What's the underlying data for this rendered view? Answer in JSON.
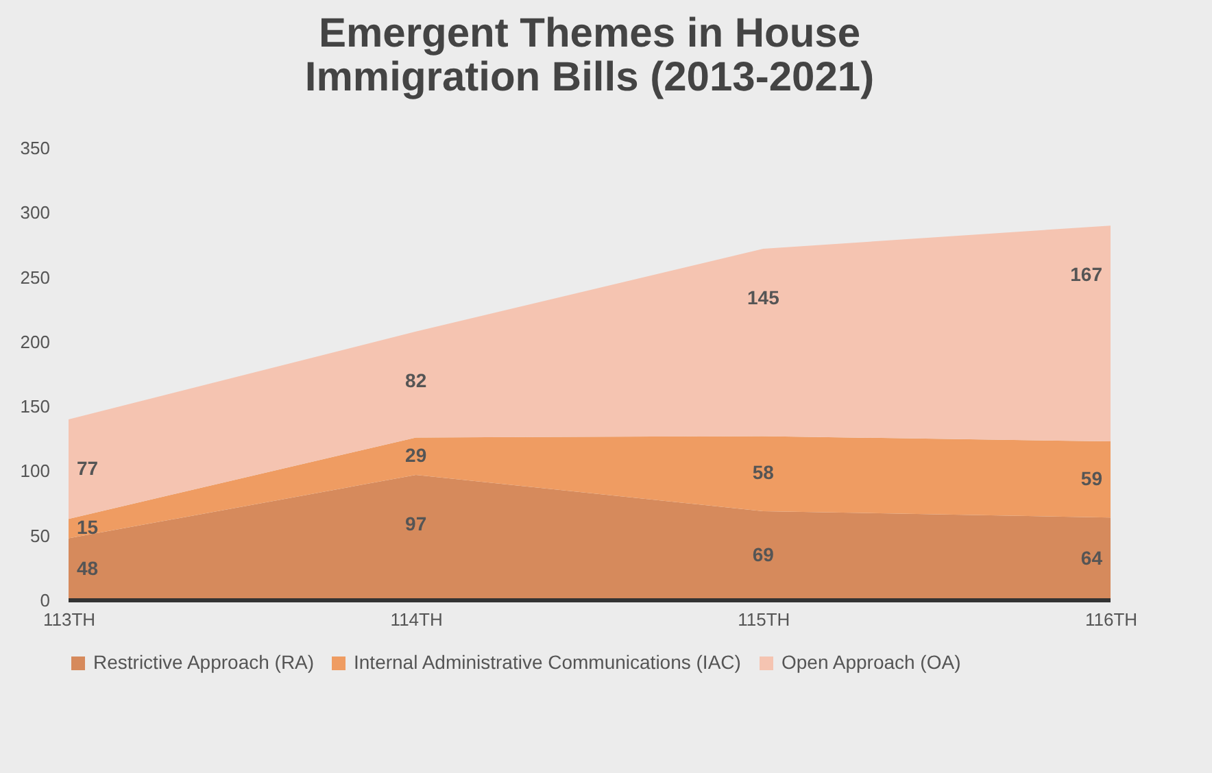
{
  "chart_data": {
    "type": "area",
    "title": "Emergent Themes in House Immigration Bills (2013-2021)",
    "categories": [
      "113TH",
      "114TH",
      "115TH",
      "116TH"
    ],
    "stacked": true,
    "series": [
      {
        "name": "Restrictive Approach (RA)",
        "color": "#d68a5c",
        "values": [
          48,
          97,
          69,
          64
        ]
      },
      {
        "name": "Internal Administrative Communications (IAC)",
        "color": "#ef9c62",
        "values": [
          15,
          29,
          58,
          59
        ]
      },
      {
        "name": "Open Approach (OA)",
        "color": "#f5c4b1",
        "values": [
          77,
          82,
          145,
          167
        ]
      }
    ],
    "ylim": [
      0,
      350
    ],
    "yticks": [
      0,
      50,
      100,
      150,
      200,
      250,
      300,
      350
    ],
    "grid": false,
    "legend": "bottom",
    "data_labels": true
  }
}
